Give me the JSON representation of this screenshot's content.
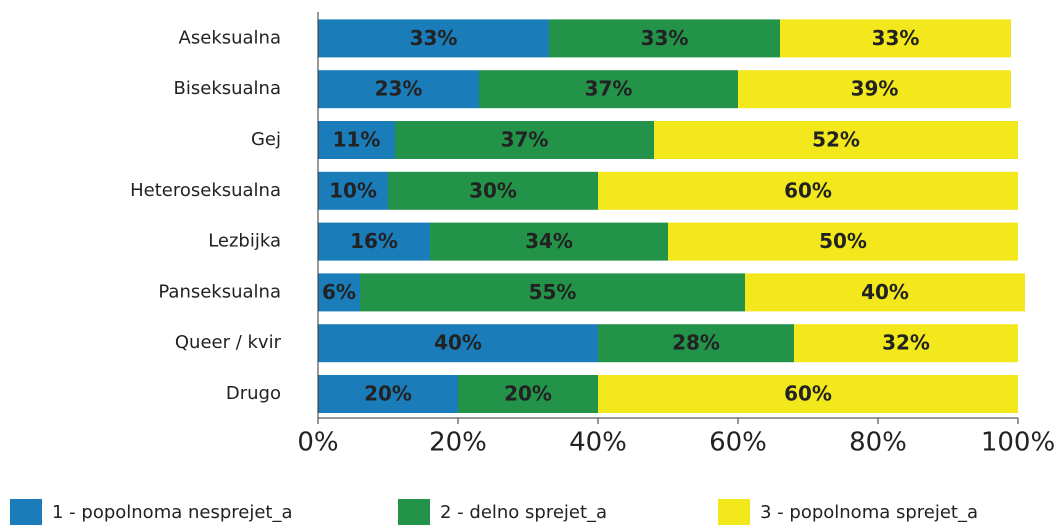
{
  "chart_data": {
    "type": "stacked_barh",
    "categories": [
      "Aseksualna",
      "Biseksualna",
      "Gej",
      "Heteroseksualna",
      "Lezbijka",
      "Panseksualna",
      "Queer / kvir",
      "Drugo"
    ],
    "series": [
      {
        "name": "1 - popolnoma nesprejet_a",
        "color": "#1a7dba",
        "values": [
          33,
          23,
          11,
          10,
          16,
          6,
          40,
          20
        ],
        "value_labels": [
          "33%",
          "23%",
          "11%",
          "10%",
          "16%",
          "6%",
          "40%",
          "20%"
        ]
      },
      {
        "name": "2 - delno sprejet_a",
        "color": "#23934a",
        "values": [
          33,
          37,
          37,
          30,
          34,
          55,
          28,
          20
        ],
        "value_labels": [
          "33%",
          "37%",
          "37%",
          "30%",
          "34%",
          "55%",
          "28%",
          "20%"
        ]
      },
      {
        "name": "3 - popolnoma sprejet_a",
        "color": "#f2e81c",
        "values": [
          33,
          39,
          52,
          60,
          50,
          40,
          32,
          60
        ],
        "value_labels": [
          "33%",
          "39%",
          "52%",
          "60%",
          "50%",
          "40%",
          "32%",
          "60%"
        ]
      }
    ],
    "xlim": [
      0,
      100
    ],
    "xticks": [
      {
        "value": 0,
        "label": "0%"
      },
      {
        "value": 20,
        "label": "20%"
      },
      {
        "value": 40,
        "label": "40%"
      },
      {
        "value": 60,
        "label": "60%"
      },
      {
        "value": 80,
        "label": "80%"
      },
      {
        "value": 100,
        "label": "100%"
      }
    ],
    "legend": "bottom"
  }
}
